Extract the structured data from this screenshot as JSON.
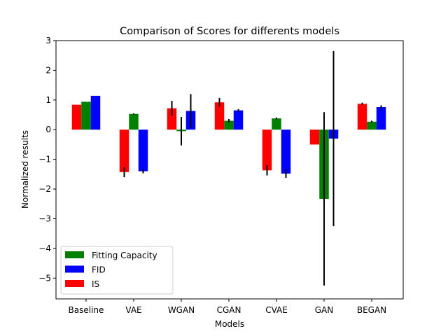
{
  "chart_data": {
    "type": "bar",
    "title": "Comparison of Scores for differents models",
    "xlabel": "Models",
    "ylabel": "Normalized results",
    "categories": [
      "Baseline",
      "VAE",
      "WGAN",
      "CGAN",
      "CVAE",
      "GAN",
      "BEGAN"
    ],
    "ylim": [
      -5.7,
      3.0
    ],
    "yticks": [
      3,
      2,
      1,
      0,
      -1,
      -2,
      -3,
      -4,
      -5
    ],
    "ytick_labels": [
      "3",
      "2",
      "1",
      "0",
      "−1",
      "−2",
      "−3",
      "−4",
      "−5"
    ],
    "legend_position": "lower-left",
    "series": [
      {
        "name": "IS",
        "color": "#ff0000",
        "values": [
          0.84,
          -1.43,
          0.72,
          0.92,
          -1.37,
          -0.5,
          0.87
        ],
        "errors": [
          null,
          0.17,
          0.25,
          0.15,
          0.17,
          null,
          0.04
        ]
      },
      {
        "name": "Fitting Capacity",
        "color": "#008000",
        "values": [
          0.94,
          0.53,
          -0.05,
          0.3,
          0.38,
          -2.33,
          0.27
        ],
        "errors": [
          null,
          0.02,
          0.48,
          0.06,
          0.03,
          2.92,
          0.03
        ]
      },
      {
        "name": "FID",
        "color": "#0000ff",
        "values": [
          1.14,
          -1.4,
          0.63,
          0.65,
          -1.48,
          -0.3,
          0.76
        ],
        "errors": [
          null,
          0.07,
          0.57,
          0.04,
          0.14,
          2.95,
          0.06
        ]
      }
    ],
    "legend_order": [
      "Fitting Capacity",
      "FID",
      "IS"
    ]
  }
}
